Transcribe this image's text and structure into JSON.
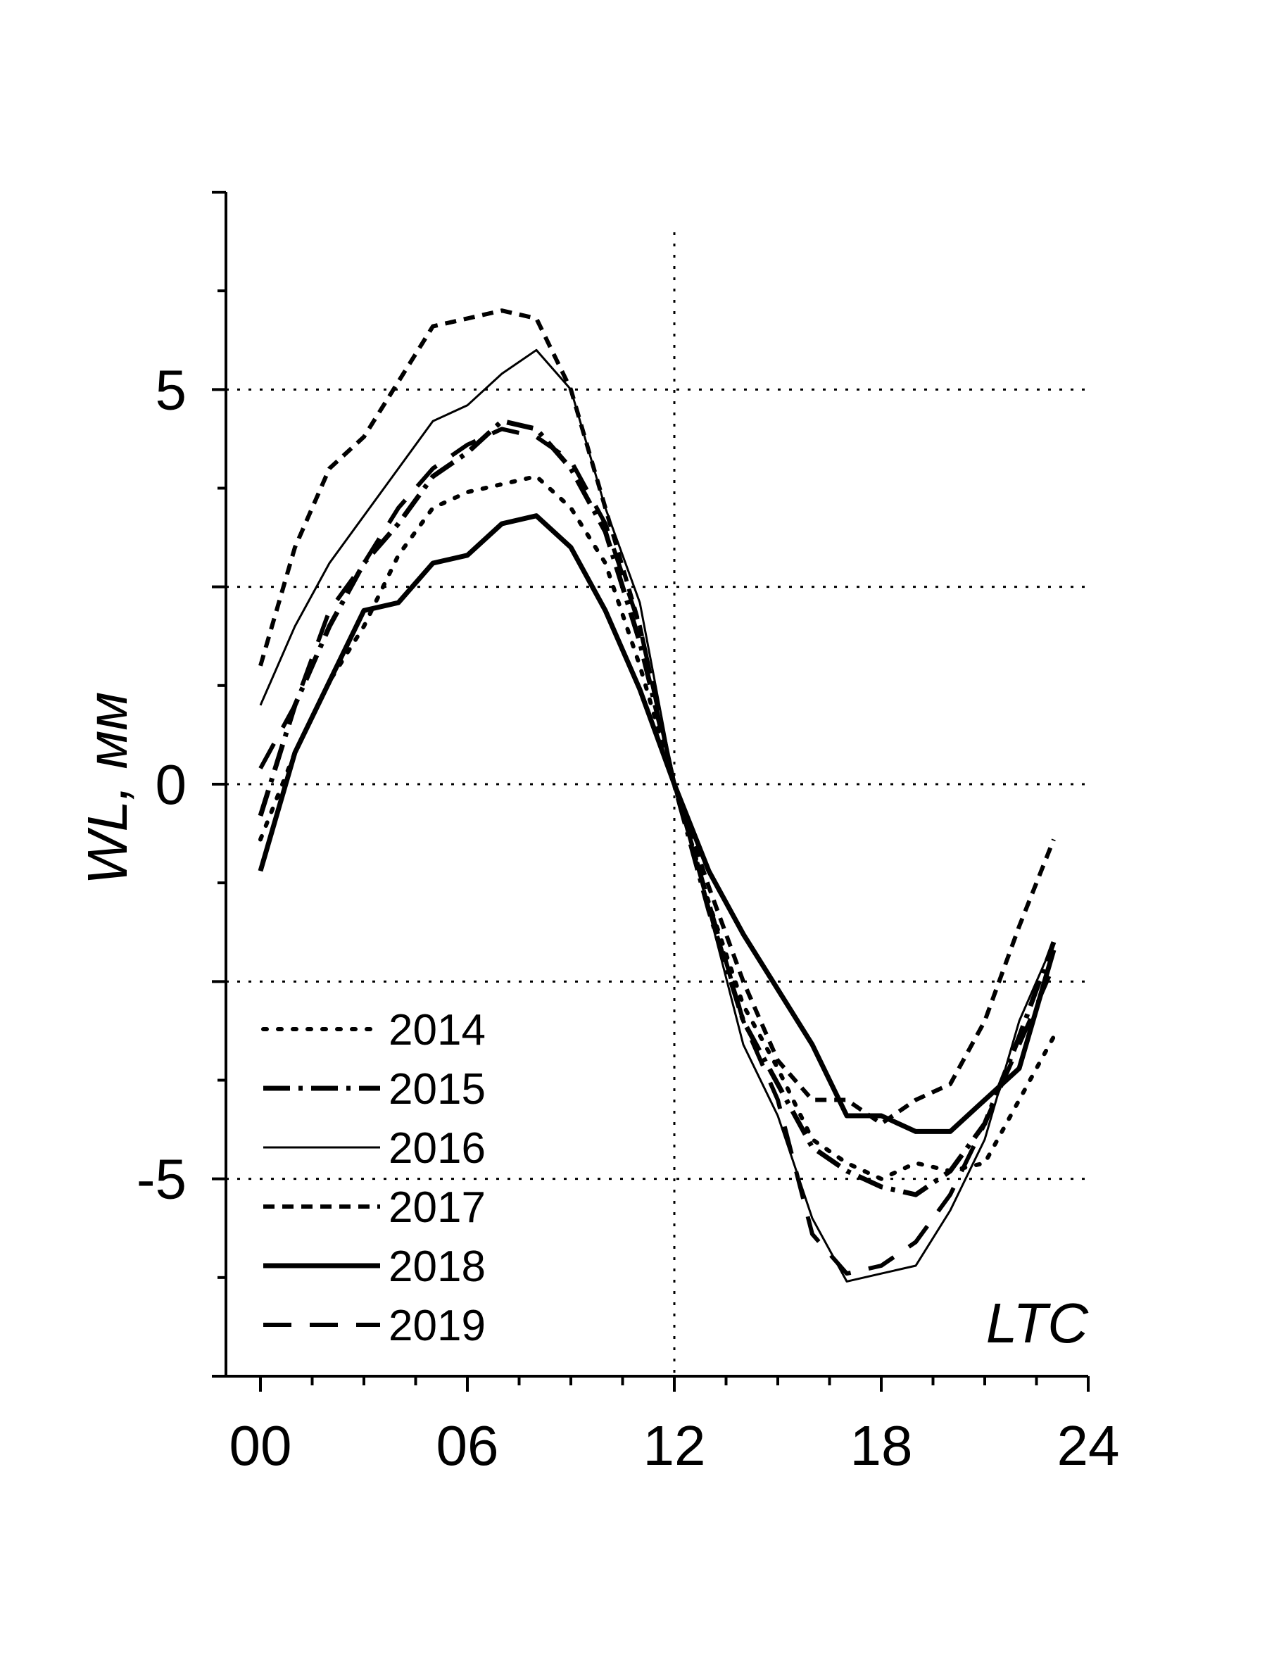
{
  "chart_data": {
    "type": "line",
    "title": "",
    "xlabel": "LTC",
    "ylabel": "WL, мм",
    "xlim": [
      -1,
      24
    ],
    "ylim": [
      -7.5,
      7.5
    ],
    "x_ticks": [
      {
        "value": 0,
        "label": "00"
      },
      {
        "value": 6,
        "label": "06"
      },
      {
        "value": 12,
        "label": "12"
      },
      {
        "value": 18,
        "label": "18"
      },
      {
        "value": 24,
        "label": "24"
      }
    ],
    "y_ticks": [
      {
        "value": 5,
        "label": "5"
      },
      {
        "value": 0,
        "label": "0"
      },
      {
        "value": -5,
        "label": "-5"
      }
    ],
    "grid": "dotted horizontal lines at y = 5, 2.5, 0, -2.5, -5 and dotted vertical line at x = 12",
    "legend_position": "bottom-left",
    "x": [
      0,
      1,
      2,
      3,
      4,
      5,
      6,
      7,
      8,
      9,
      10,
      11,
      12,
      13,
      14,
      15,
      16,
      17,
      18,
      19,
      20,
      21,
      22,
      23
    ],
    "series": [
      {
        "name": "2014",
        "style": "dotted",
        "values": [
          -0.7,
          0.4,
          1.3,
          2.0,
          2.9,
          3.5,
          3.7,
          3.8,
          3.9,
          3.5,
          2.8,
          1.5,
          0.0,
          -1.5,
          -2.8,
          -3.6,
          -4.5,
          -4.8,
          -5.0,
          -4.8,
          -4.9,
          -4.8,
          -4.0,
          -3.2
        ]
      },
      {
        "name": "2015",
        "style": "dash-dot",
        "values": [
          -0.4,
          1.0,
          2.0,
          2.8,
          3.3,
          3.9,
          4.2,
          4.6,
          4.5,
          4.0,
          3.2,
          1.8,
          0.0,
          -1.6,
          -3.0,
          -3.8,
          -4.6,
          -4.9,
          -5.1,
          -5.2,
          -4.9,
          -4.3,
          -3.2,
          -2.0
        ]
      },
      {
        "name": "2016",
        "style": "thin solid",
        "values": [
          1.0,
          2.0,
          2.8,
          3.4,
          4.0,
          4.6,
          4.8,
          5.2,
          5.5,
          5.0,
          3.5,
          2.3,
          0.0,
          -1.6,
          -3.3,
          -4.2,
          -5.5,
          -6.3,
          -6.2,
          -6.1,
          -5.4,
          -4.5,
          -3.0,
          -2.0
        ]
      },
      {
        "name": "2017",
        "style": "short dash",
        "values": [
          1.5,
          3.0,
          4.0,
          4.4,
          5.1,
          5.8,
          5.9,
          6.0,
          5.9,
          5.0,
          3.5,
          2.0,
          0.0,
          -1.3,
          -2.5,
          -3.5,
          -4.0,
          -4.0,
          -4.3,
          -4.0,
          -3.8,
          -3.0,
          -1.8,
          -0.7
        ]
      },
      {
        "name": "2018",
        "style": "thick solid",
        "values": [
          -1.1,
          0.4,
          1.3,
          2.2,
          2.3,
          2.8,
          2.9,
          3.3,
          3.4,
          3.0,
          2.2,
          1.2,
          0.0,
          -1.1,
          -1.9,
          -2.6,
          -3.3,
          -4.2,
          -4.2,
          -4.4,
          -4.4,
          -4.0,
          -3.6,
          -2.1
        ]
      },
      {
        "name": "2019",
        "style": "long dash",
        "values": [
          0.2,
          1.0,
          2.2,
          2.8,
          3.5,
          4.0,
          4.3,
          4.5,
          4.4,
          4.1,
          3.3,
          2.0,
          0.0,
          -1.5,
          -3.0,
          -4.0,
          -5.7,
          -6.2,
          -6.1,
          -5.8,
          -5.2,
          -4.3,
          -3.3,
          -2.3
        ]
      }
    ]
  }
}
